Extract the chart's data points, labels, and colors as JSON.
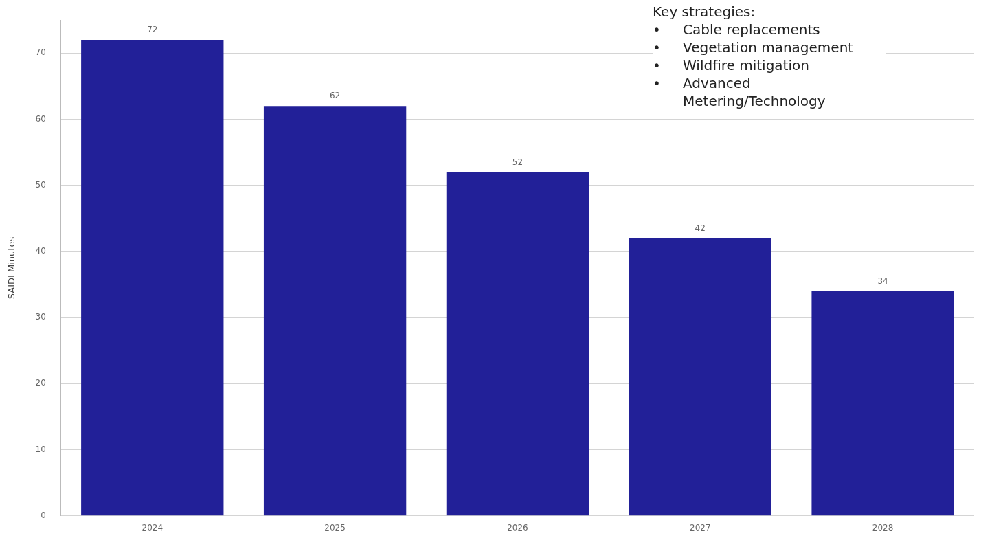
{
  "chart_data": {
    "type": "bar",
    "ylabel": "SAIDI Minutes",
    "categories": [
      "2024",
      "2025",
      "2026",
      "2027",
      "2028"
    ],
    "values": [
      72,
      62,
      52,
      42,
      34
    ],
    "color": "#222098",
    "ylim": [
      0,
      75
    ],
    "yticks": [
      0,
      10,
      20,
      30,
      40,
      50,
      60,
      70
    ],
    "grid": "y",
    "data_labels": true,
    "annotations": [
      "Key strategies:",
      "•\tCable replacements",
      "•\tVegetation management",
      "•\tWildfire mitigation",
      "•\tAdvanced Metering/Technology"
    ]
  }
}
